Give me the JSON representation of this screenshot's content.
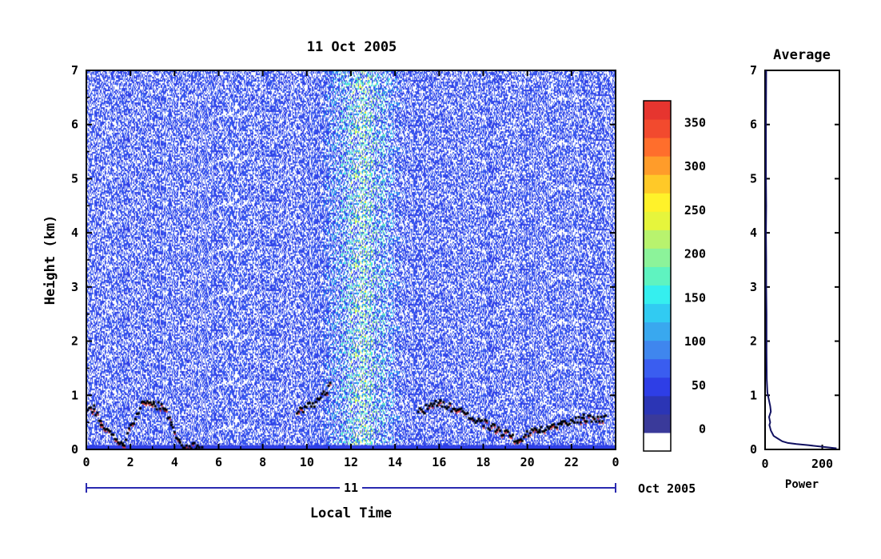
{
  "chart_data": [
    {
      "type": "heatmap",
      "title": "11 Oct 2005",
      "xlabel": "Local Time",
      "ylabel": "Height (km)",
      "xlim": [
        0,
        24
      ],
      "ylim": [
        0,
        7
      ],
      "x_ticks": [
        "0",
        "2",
        "4",
        "6",
        "8",
        "10",
        "12",
        "14",
        "16",
        "18",
        "20",
        "22",
        "0"
      ],
      "y_ticks": [
        "0",
        "1",
        "2",
        "3",
        "4",
        "5",
        "6",
        "7"
      ],
      "date_bar": {
        "day_label": "11",
        "month_label": "Oct 2005"
      },
      "colorbar": {
        "ticks": [
          0,
          50,
          100,
          150,
          200,
          250,
          300,
          350
        ],
        "range": [
          -25,
          375
        ],
        "colors": [
          "#ffffff",
          "#3a3a9a",
          "#2b35b5",
          "#2e3ee6",
          "#3a5df0",
          "#3f86ee",
          "#39a8ef",
          "#31cbf2",
          "#35efef",
          "#5ff3c0",
          "#8cf39a",
          "#b8f36e",
          "#e6f53c",
          "#fff22a",
          "#ffc928",
          "#ff9c2a",
          "#ff6e2c",
          "#f24a2e",
          "#e6352f"
        ]
      },
      "features": {
        "noise_background_value": 60,
        "boundary_layer_value": 40,
        "convective_column_hours": [
          10.5,
          14.5
        ],
        "layer_tops_km": [
          [
            0.0,
            0.7
          ],
          [
            0.3,
            0.8
          ],
          [
            0.6,
            0.5
          ],
          [
            1.6,
            0.1
          ],
          [
            2.5,
            0.9
          ],
          [
            3.0,
            0.85
          ],
          [
            3.5,
            0.8
          ],
          [
            3.8,
            0.45
          ],
          [
            4.2,
            0.1
          ],
          [
            5.2,
            0.05
          ],
          [
            9.5,
            0.7
          ],
          [
            10.5,
            0.9
          ],
          [
            11.0,
            1.2
          ],
          [
            15.0,
            0.7
          ],
          [
            16.0,
            0.9
          ],
          [
            18.5,
            0.4
          ],
          [
            19.5,
            0.2
          ],
          [
            20.5,
            0.4
          ],
          [
            21.5,
            0.5
          ],
          [
            22.5,
            0.6
          ],
          [
            23.5,
            0.6
          ]
        ]
      }
    },
    {
      "type": "line",
      "title": "Average",
      "xlabel": "Power",
      "ylabel": "",
      "xlim": [
        0,
        260
      ],
      "ylim": [
        0,
        7
      ],
      "x_ticks": [
        "0",
        "200"
      ],
      "y_ticks": [
        "0",
        "1",
        "2",
        "3",
        "4",
        "5",
        "6",
        "7"
      ],
      "series": [
        {
          "x": [
            250,
            200,
            150,
            110,
            80,
            60,
            45,
            30,
            20,
            15,
            18,
            16,
            14,
            20,
            18,
            12,
            8,
            6,
            5,
            5,
            4,
            4,
            3,
            4,
            3,
            3,
            3,
            4
          ],
          "y": [
            0.02,
            0.05,
            0.08,
            0.1,
            0.12,
            0.15,
            0.2,
            0.25,
            0.35,
            0.45,
            0.5,
            0.55,
            0.6,
            0.7,
            0.8,
            0.95,
            1.05,
            1.3,
            1.8,
            2.5,
            3.0,
            3.5,
            4.0,
            4.5,
            5.0,
            5.5,
            6.0,
            7.0
          ]
        }
      ]
    }
  ]
}
